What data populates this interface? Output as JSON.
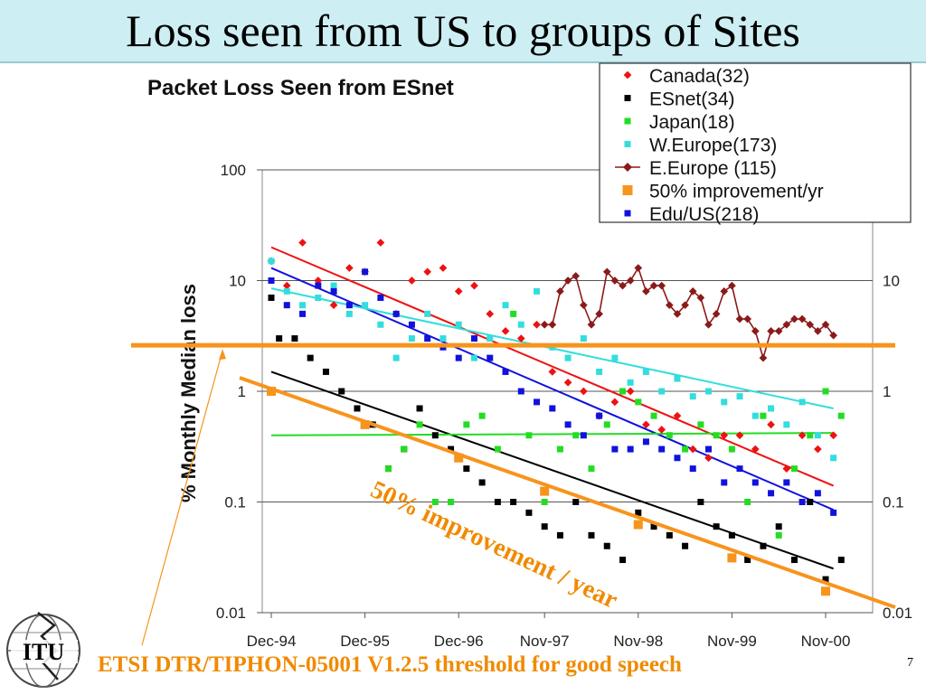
{
  "slide": {
    "title": "Loss seen from US to groups of Sites",
    "footer": "ETSI DTR/TIPHON-05001 V1.2.5 threshold for good speech",
    "page_number": "7",
    "logo_text": "ITU",
    "title_bar_color": "#cdeef3"
  },
  "chart_data": {
    "type": "scatter",
    "title": "Packet Loss Seen from ESnet",
    "ylabel": "% Monthly Median loss",
    "xlabel": "",
    "y_scale": "log",
    "ylim": [
      0.01,
      100
    ],
    "y_ticks": [
      "100",
      "10",
      "1",
      "0.1",
      "0.01"
    ],
    "y_tick_values": [
      100,
      10,
      1,
      0.1,
      0.01
    ],
    "xlim": [
      "Dec-94",
      "Jan-01"
    ],
    "x_ticks": [
      "Dec-94",
      "Dec-95",
      "Dec-96",
      "Nov-97",
      "Nov-98",
      "Nov-99",
      "Nov-00"
    ],
    "x_tick_values": [
      "1994-12",
      "1995-12",
      "1996-12",
      "1997-11",
      "1998-11",
      "1999-11",
      "2000-11"
    ],
    "grid": true,
    "legend_position": "top-right",
    "legend": [
      {
        "name": "Canada(32)",
        "marker": "diamond",
        "color": "#ee1111"
      },
      {
        "name": "ESnet(34)",
        "marker": "square",
        "color": "#000000"
      },
      {
        "name": "Japan(18)",
        "marker": "square",
        "color": "#22dd22"
      },
      {
        "name": "W.Europe(173)",
        "marker": "square",
        "color": "#33dddd"
      },
      {
        "name": "E.Europe (115)",
        "marker": "line-diamond",
        "color": "#8b1a1a"
      },
      {
        "name": "50% improvement/yr",
        "marker": "square",
        "color": "#f7941d"
      },
      {
        "name": "Edu/US(218)",
        "marker": "square",
        "color": "#1111dd"
      }
    ],
    "series": [
      {
        "name": "Canada(32)",
        "color": "#ee1111",
        "marker": "diamond",
        "x": [
          "1994-12",
          "1995-02",
          "1995-04",
          "1995-06",
          "1995-08",
          "1995-10",
          "1995-12",
          "1996-02",
          "1996-04",
          "1996-06",
          "1996-08",
          "1996-10",
          "1996-12",
          "1997-02",
          "1997-04",
          "1997-06",
          "1997-08",
          "1997-10",
          "1997-12",
          "1998-02",
          "1998-04",
          "1998-06",
          "1998-08",
          "1998-10",
          "1998-12",
          "1999-02",
          "1999-04",
          "1999-06",
          "1999-08",
          "1999-10",
          "1999-12",
          "2000-02",
          "2000-04",
          "2000-06",
          "2000-08",
          "2000-10",
          "2000-12"
        ],
        "y": [
          15,
          9,
          22,
          10,
          6,
          13,
          12,
          22,
          5,
          10,
          12,
          13,
          8,
          9,
          5,
          3.5,
          3,
          4,
          1.5,
          1.2,
          1,
          0.6,
          0.8,
          1,
          0.5,
          0.45,
          0.6,
          0.3,
          0.25,
          0.4,
          0.4,
          0.3,
          0.5,
          0.2,
          0.4,
          0.3,
          0.4
        ]
      },
      {
        "name": "ESnet(34)",
        "color": "#000000",
        "marker": "square",
        "x": [
          "1994-12",
          "1995-01",
          "1995-03",
          "1995-05",
          "1995-07",
          "1995-09",
          "1995-11",
          "1996-01",
          "1996-03",
          "1996-05",
          "1996-07",
          "1996-09",
          "1996-11",
          "1997-01",
          "1997-03",
          "1997-05",
          "1997-07",
          "1997-09",
          "1997-11",
          "1998-01",
          "1998-03",
          "1998-05",
          "1998-07",
          "1998-09",
          "1998-11",
          "1999-01",
          "1999-03",
          "1999-05",
          "1999-07",
          "1999-09",
          "1999-11",
          "2000-01",
          "2000-03",
          "2000-05",
          "2000-07",
          "2000-09",
          "2000-11",
          "2001-01"
        ],
        "y": [
          7,
          3,
          3,
          2,
          1.5,
          1,
          0.7,
          0.5,
          0.2,
          0.3,
          0.7,
          0.4,
          0.3,
          0.2,
          0.15,
          0.1,
          0.1,
          0.08,
          0.06,
          0.05,
          0.1,
          0.05,
          0.04,
          0.03,
          0.08,
          0.06,
          0.05,
          0.04,
          0.1,
          0.06,
          0.05,
          0.03,
          0.04,
          0.06,
          0.03,
          0.1,
          0.02,
          0.03
        ]
      },
      {
        "name": "Japan(18)",
        "color": "#22dd22",
        "marker": "square",
        "x": [
          "1996-03",
          "1996-05",
          "1996-07",
          "1996-09",
          "1996-11",
          "1997-01",
          "1997-03",
          "1997-05",
          "1997-07",
          "1997-09",
          "1997-11",
          "1998-01",
          "1998-03",
          "1998-05",
          "1998-07",
          "1998-09",
          "1998-11",
          "1999-01",
          "1999-03",
          "1999-05",
          "1999-07",
          "1999-09",
          "1999-11",
          "2000-01",
          "2000-03",
          "2000-05",
          "2000-07",
          "2000-09",
          "2000-11",
          "2001-01"
        ],
        "y": [
          0.2,
          0.3,
          0.5,
          0.1,
          0.1,
          0.5,
          0.6,
          0.3,
          5,
          0.4,
          0.1,
          0.3,
          0.4,
          0.2,
          0.5,
          1,
          0.8,
          0.6,
          0.4,
          0.3,
          0.5,
          0.4,
          0.3,
          0.1,
          0.6,
          0.05,
          0.2,
          0.4,
          1,
          0.6
        ]
      },
      {
        "name": "W.Europe(173)",
        "color": "#33dddd",
        "marker": "square",
        "x": [
          "1994-12",
          "1995-02",
          "1995-04",
          "1995-06",
          "1995-08",
          "1995-10",
          "1995-12",
          "1996-02",
          "1996-04",
          "1996-06",
          "1996-08",
          "1996-10",
          "1996-12",
          "1997-02",
          "1997-04",
          "1997-06",
          "1997-08",
          "1997-10",
          "1997-12",
          "1998-02",
          "1998-04",
          "1998-06",
          "1998-08",
          "1998-10",
          "1998-12",
          "1999-02",
          "1999-04",
          "1999-06",
          "1999-08",
          "1999-10",
          "1999-12",
          "2000-02",
          "2000-04",
          "2000-06",
          "2000-08",
          "2000-10",
          "2000-12"
        ],
        "y": [
          15,
          8,
          6,
          7,
          9,
          5,
          6,
          4,
          2,
          3,
          5,
          3,
          4,
          2,
          3,
          6,
          4,
          8,
          2.5,
          2,
          3,
          1.5,
          2,
          1.2,
          1.5,
          1,
          1.3,
          0.9,
          1,
          0.8,
          0.9,
          0.6,
          0.7,
          0.5,
          0.8,
          0.4,
          0.25
        ]
      },
      {
        "name": "E.Europe (115)",
        "color": "#8b1a1a",
        "marker": "line-diamond",
        "x": [
          "1997-11",
          "1997-12",
          "1998-01",
          "1998-02",
          "1998-03",
          "1998-04",
          "1998-05",
          "1998-06",
          "1998-07",
          "1998-08",
          "1998-09",
          "1998-10",
          "1998-11",
          "1998-12",
          "1999-01",
          "1999-02",
          "1999-03",
          "1999-04",
          "1999-05",
          "1999-06",
          "1999-07",
          "1999-08",
          "1999-09",
          "1999-10",
          "1999-11",
          "1999-12",
          "2000-01",
          "2000-02",
          "2000-03",
          "2000-04",
          "2000-05",
          "2000-06",
          "2000-07",
          "2000-08",
          "2000-09",
          "2000-10",
          "2000-11",
          "2000-12"
        ],
        "y": [
          4,
          4,
          8,
          10,
          11,
          6,
          4,
          5,
          12,
          10,
          9,
          10,
          13,
          8,
          9,
          9,
          6,
          5,
          6,
          8,
          7,
          4,
          5,
          8,
          9,
          4.5,
          4.5,
          3.5,
          2,
          3.5,
          3.5,
          4,
          4.5,
          4.5,
          4,
          3.5,
          4,
          3.2
        ]
      },
      {
        "name": "50% improvement/yr",
        "color": "#f7941d",
        "marker": "square",
        "x": [
          "1994-12",
          "1995-12",
          "1996-12",
          "1997-11",
          "1998-11",
          "1999-11",
          "2000-11"
        ],
        "y": [
          1,
          0.5,
          0.25,
          0.125,
          0.0625,
          0.03125,
          0.015625
        ]
      },
      {
        "name": "Edu/US(218)",
        "color": "#1111dd",
        "marker": "square",
        "x": [
          "1994-12",
          "1995-02",
          "1995-04",
          "1995-06",
          "1995-08",
          "1995-10",
          "1995-12",
          "1996-02",
          "1996-04",
          "1996-06",
          "1996-08",
          "1996-10",
          "1996-12",
          "1997-02",
          "1997-04",
          "1997-06",
          "1997-08",
          "1997-10",
          "1997-12",
          "1998-02",
          "1998-04",
          "1998-06",
          "1998-08",
          "1998-10",
          "1998-12",
          "1999-02",
          "1999-04",
          "1999-06",
          "1999-08",
          "1999-10",
          "1999-12",
          "2000-02",
          "2000-04",
          "2000-06",
          "2000-08",
          "2000-10",
          "2000-12"
        ],
        "y": [
          10,
          6,
          5,
          9,
          8,
          6,
          12,
          7,
          5,
          4,
          3,
          2.5,
          2,
          3,
          2,
          1.5,
          1,
          0.8,
          0.7,
          0.5,
          0.4,
          0.6,
          0.3,
          0.3,
          0.35,
          0.3,
          0.25,
          0.2,
          0.3,
          0.15,
          0.2,
          0.15,
          0.12,
          0.15,
          0.1,
          0.12,
          0.08
        ]
      }
    ],
    "trend_lines": [
      {
        "color": "#ee1111",
        "x": [
          "1994-12",
          "2000-12"
        ],
        "y": [
          20,
          0.14
        ]
      },
      {
        "color": "#1111dd",
        "x": [
          "1994-12",
          "2000-12"
        ],
        "y": [
          13,
          0.085
        ]
      },
      {
        "color": "#33dddd",
        "x": [
          "1994-12",
          "2000-12"
        ],
        "y": [
          8.5,
          0.7
        ]
      },
      {
        "color": "#000000",
        "x": [
          "1994-12",
          "2000-12"
        ],
        "y": [
          1.5,
          0.025
        ]
      },
      {
        "color": "#22dd22",
        "x": [
          "1994-12",
          "2000-12"
        ],
        "y": [
          0.4,
          0.42
        ]
      }
    ],
    "threshold": {
      "y": 2.6,
      "color": "#f7941d"
    },
    "improvement_label": "50% improvement / year"
  }
}
